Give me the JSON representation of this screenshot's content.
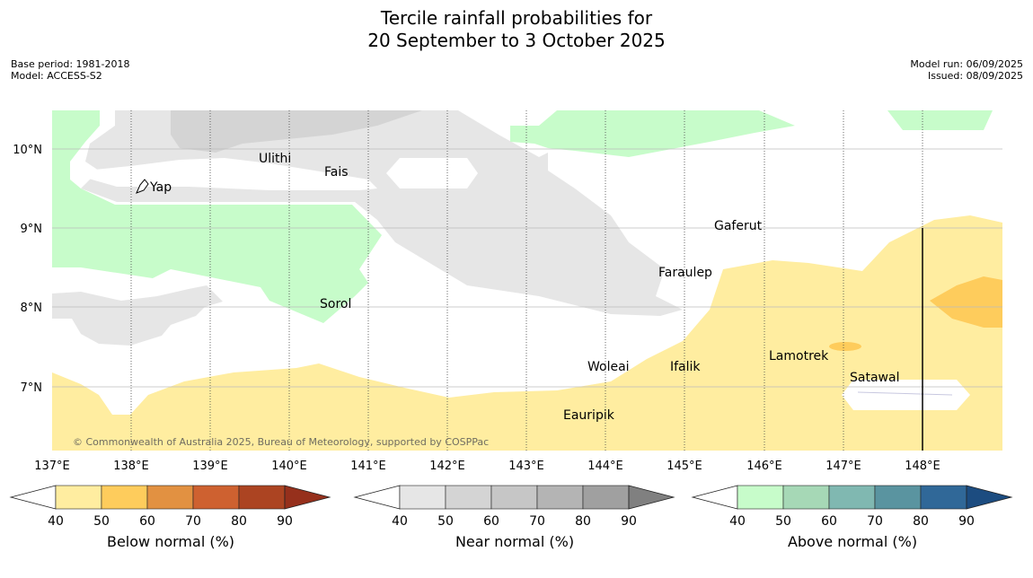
{
  "title_line1": "Tercile rainfall probabilities for",
  "title_line2": "20 September to 3 October 2025",
  "base_period": "Base period: 1981-2018",
  "model": "Model: ACCESS-S2",
  "model_run": "Model run: 06/09/2025",
  "issued": "Issued: 08/09/2025",
  "copyright": "© Commonwealth of Australia 2025, Bureau of Meteorology, supported by COSPPac",
  "lon_labels": [
    "137°E",
    "138°E",
    "139°E",
    "140°E",
    "141°E",
    "142°E",
    "143°E",
    "144°E",
    "145°E",
    "146°E",
    "147°E",
    "148°E"
  ],
  "lat_labels": [
    "10°N",
    "9°N",
    "8°N",
    "7°N"
  ],
  "places": [
    "Ulithi",
    "Fais",
    "Yap",
    "Gaferut",
    "Faraulep",
    "Sorol",
    "Woleai",
    "Ifalik",
    "Lamotrek",
    "Satawal",
    "Eauripik"
  ],
  "colorbars": [
    {
      "name": "below",
      "label": "Below normal (%)",
      "ticks": [
        "40",
        "50",
        "60",
        "70",
        "80",
        "90"
      ],
      "colors": [
        "#ffeda0",
        "#fecc5c",
        "#e29141",
        "#ce6130",
        "#ac4422"
      ],
      "over": "#96301c"
    },
    {
      "name": "near",
      "label": "Near normal (%)",
      "ticks": [
        "40",
        "50",
        "60",
        "70",
        "80",
        "90"
      ],
      "colors": [
        "#e6e6e6",
        "#d4d4d4",
        "#c6c6c6",
        "#b4b4b4",
        "#a0a0a0"
      ],
      "over": "#808080"
    },
    {
      "name": "above",
      "label": "Above normal (%)",
      "ticks": [
        "40",
        "50",
        "60",
        "70",
        "80",
        "90"
      ],
      "colors": [
        "#c7fcca",
        "#a6d8b6",
        "#80b8b1",
        "#5a94a0",
        "#306898"
      ],
      "over": "#1c4c80"
    }
  ]
}
